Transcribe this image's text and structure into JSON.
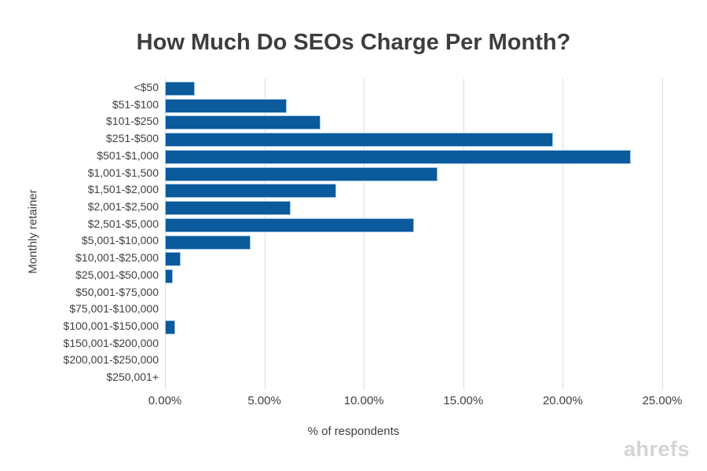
{
  "title": "How Much Do SEOs Charge Per Month?",
  "watermark": "ahrefs",
  "chart_data": {
    "type": "bar",
    "orientation": "horizontal",
    "title": "How Much Do SEOs Charge Per Month?",
    "ylabel": "Monthly retainer",
    "xlabel": "% of respondents",
    "categories": [
      "<$50",
      "$51-$100",
      "$101-$250",
      "$251-$500",
      "$501-$1,000",
      "$1,001-$1,500",
      "$1,501-$2,000",
      "$2,001-$2,500",
      "$2,501-$5,000",
      "$5,001-$10,000",
      "$10,001-$25,000",
      "$25,001-$50,000",
      "$50,001-$75,000",
      "$75,001-$100,000",
      "$100,001-$150,000",
      "$150,001-$200,000",
      "$200,001-$250,000",
      "$250,001+"
    ],
    "values": [
      1.5,
      6.1,
      7.8,
      19.5,
      23.4,
      13.7,
      8.6,
      6.3,
      12.5,
      4.3,
      0.8,
      0.4,
      0,
      0,
      0.5,
      0,
      0,
      0
    ],
    "xlim": [
      0,
      25
    ],
    "xticks": [
      {
        "value": 0,
        "label": "0.00%"
      },
      {
        "value": 5,
        "label": "5.00%"
      },
      {
        "value": 10,
        "label": "10.00%"
      },
      {
        "value": 15,
        "label": "15.00%"
      },
      {
        "value": 20,
        "label": "20.00%"
      },
      {
        "value": 25,
        "label": "25.00%"
      }
    ],
    "grid": true,
    "legend": false,
    "bar_color": "#0a5a9c",
    "bar_border_color": "#9fc5e8",
    "gridline_color": "#dcdcdc",
    "text_color": "#404040",
    "title_color": "#3d3d3d",
    "watermark_color": "#d4d4d4"
  }
}
